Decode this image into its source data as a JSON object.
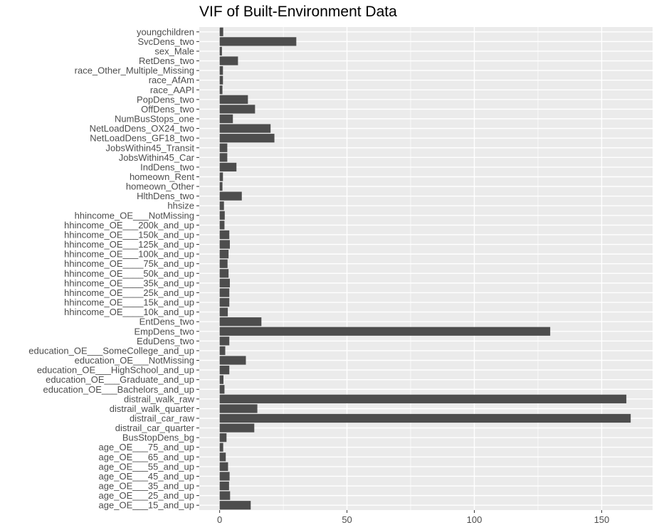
{
  "chart_data": {
    "type": "bar",
    "orientation": "horizontal",
    "title": "VIF of Built-Environment Data",
    "xlabel": "",
    "ylabel": "",
    "xlim": [
      -8,
      170
    ],
    "xticks": [
      0,
      50,
      100,
      150
    ],
    "grid": true,
    "bar_color": "#4d4d4d",
    "panel_color": "#ebebeb",
    "categories": [
      "youngchildren",
      "SvcDens_two",
      "sex_Male",
      "RetDens_two",
      "race_Other_Multiple_Missing",
      "race_AfAm",
      "race_AAPI",
      "PopDens_two",
      "OffDens_two",
      "NumBusStops_one",
      "NetLoadDens_OX24_two",
      "NetLoadDens_GF18_two",
      "JobsWithin45_Transit",
      "JobsWithin45_Car",
      "IndDens_two",
      "homeown_Rent",
      "homeown_Other",
      "HlthDens_two",
      "hhsize",
      "hhincome_OE___NotMissing",
      "hhincome_OE___200k_and_up",
      "hhincome_OE___150k_and_up",
      "hhincome_OE___125k_and_up",
      "hhincome_OE___100k_and_up",
      "hhincome_OE____75k_and_up",
      "hhincome_OE____50k_and_up",
      "hhincome_OE____35k_and_up",
      "hhincome_OE____25k_and_up",
      "hhincome_OE____15k_and_up",
      "hhincome_OE____10k_and_up",
      "EntDens_two",
      "EmpDens_two",
      "EduDens_two",
      "education_OE___SomeCollege_and_up",
      "education_OE___NotMissing",
      "education_OE___HighSchool_and_up",
      "education_OE___Graduate_and_up",
      "education_OE___Bachelors_and_up",
      "distrail_walk_raw",
      "distrail_walk_quarter",
      "distrail_car_raw",
      "distrail_car_quarter",
      "BusStopDens_bg",
      "age_OE___75_and_up",
      "age_OE___65_and_up",
      "age_OE___55_and_up",
      "age_OE___45_and_up",
      "age_OE___35_and_up",
      "age_OE___25_and_up",
      "age_OE___15_and_up"
    ],
    "values": [
      1.4,
      30.1,
      0.9,
      7.2,
      1.3,
      1.3,
      1.1,
      11.1,
      13.9,
      5.2,
      20.0,
      21.5,
      3.0,
      3.0,
      6.6,
      1.3,
      1.1,
      8.7,
      1.7,
      2.0,
      1.9,
      3.8,
      4.0,
      3.5,
      3.1,
      3.5,
      4.0,
      3.8,
      3.8,
      3.2,
      16.4,
      129.8,
      3.8,
      2.2,
      10.3,
      3.8,
      1.5,
      1.9,
      159.7,
      14.8,
      161.4,
      13.6,
      2.7,
      1.4,
      2.4,
      3.3,
      3.9,
      3.7,
      4.1,
      12.2
    ]
  }
}
